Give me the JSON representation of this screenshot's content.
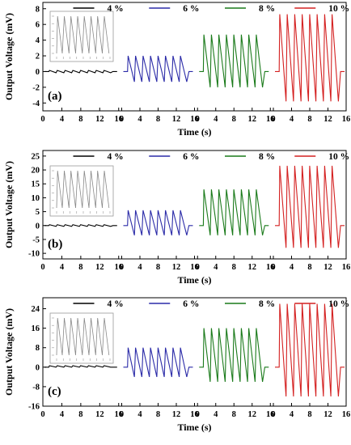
{
  "chart_data": [
    {
      "type": "line",
      "panel_label": "(a)",
      "xlabel": "Time (s)",
      "ylabel": "Output Voltage (mV)",
      "ylim": [
        -5,
        8.8
      ],
      "yticks": [
        -4,
        -2,
        0,
        2,
        4,
        6,
        8
      ],
      "xlim": [
        0,
        16
      ],
      "xticks": [
        0,
        4,
        8,
        12,
        16
      ],
      "legend": "top",
      "series": [
        {
          "name": "4 %",
          "color": "#000000",
          "segment": 1,
          "y_min": -0.15,
          "y_max": 0.15,
          "cycles": 8
        },
        {
          "name": "6 %",
          "color": "#2b2ba8",
          "segment": 2,
          "y_min": -1.3,
          "y_max": 2.0,
          "cycles": 8
        },
        {
          "name": "8 %",
          "color": "#1a7a1a",
          "segment": 3,
          "y_min": -2.0,
          "y_max": 4.7,
          "cycles": 8
        },
        {
          "name": "10 %",
          "color": "#d42020",
          "segment": 4,
          "y_min": -3.8,
          "y_max": 7.3,
          "cycles": 8
        }
      ],
      "inset": {
        "type": "line",
        "color": "#888888",
        "cycles": 8
      }
    },
    {
      "type": "line",
      "panel_label": "(b)",
      "xlabel": "Time (s)",
      "ylabel": "Output Voltage (mV)",
      "ylim": [
        -12,
        27
      ],
      "yticks": [
        -10,
        -5,
        0,
        5,
        10,
        15,
        20,
        25
      ],
      "xlim": [
        0,
        16
      ],
      "xticks": [
        0,
        4,
        8,
        12,
        16
      ],
      "legend": "top",
      "series": [
        {
          "name": "4 %",
          "color": "#000000",
          "segment": 1,
          "y_min": -0.3,
          "y_max": 0.3,
          "cycles": 8
        },
        {
          "name": "6 %",
          "color": "#2b2ba8",
          "segment": 2,
          "y_min": -3.5,
          "y_max": 5.5,
          "cycles": 8
        },
        {
          "name": "8 %",
          "color": "#1a7a1a",
          "segment": 3,
          "y_min": -3.5,
          "y_max": 13,
          "cycles": 8
        },
        {
          "name": "10 %",
          "color": "#d42020",
          "segment": 4,
          "y_min": -8,
          "y_max": 21.5,
          "cycles": 8
        }
      ],
      "inset": {
        "type": "line",
        "color": "#888888",
        "cycles": 8
      }
    },
    {
      "type": "line",
      "panel_label": "(c)",
      "xlabel": "Time (s)",
      "ylabel": "Output Voltage (mV)",
      "ylim": [
        -16,
        28.5
      ],
      "yticks": [
        -16,
        -8,
        0,
        8,
        16,
        24
      ],
      "xlim": [
        0,
        16
      ],
      "xticks": [
        0,
        4,
        8,
        12,
        16
      ],
      "legend": "top",
      "series": [
        {
          "name": "4 %",
          "color": "#000000",
          "segment": 1,
          "y_min": 0.0,
          "y_max": 0.6,
          "cycles": 8
        },
        {
          "name": "6 %",
          "color": "#2b2ba8",
          "segment": 2,
          "y_min": -4,
          "y_max": 8,
          "cycles": 8
        },
        {
          "name": "8 %",
          "color": "#1a7a1a",
          "segment": 3,
          "y_min": -6,
          "y_max": 16,
          "cycles": 8
        },
        {
          "name": "10 %",
          "color": "#d42020",
          "segment": 4,
          "y_min": -12,
          "y_max": 26,
          "cycles": 8
        }
      ],
      "inset": {
        "type": "line",
        "color": "#888888",
        "cycles": 8
      }
    }
  ]
}
